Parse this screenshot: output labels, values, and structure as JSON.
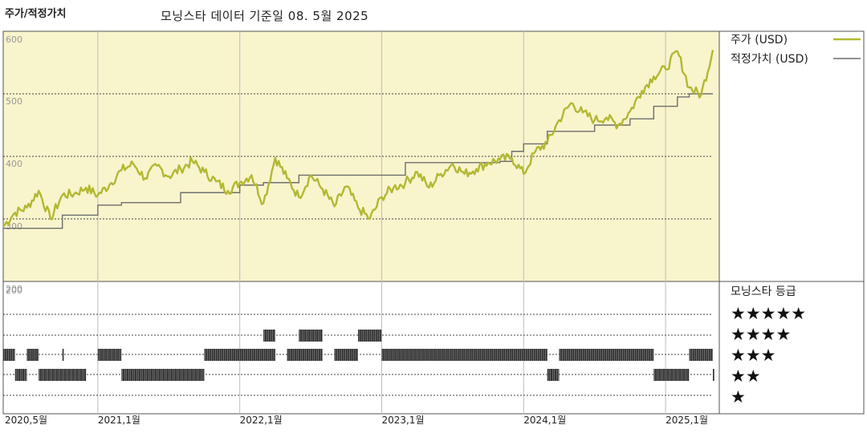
{
  "header": {
    "left_title": "주가/적정가치",
    "center_title": "모닝스타 데이터 기준일 08. 5월 2025"
  },
  "legend": {
    "price_label": "주가 (USD)",
    "fair_label": "적정가치 (USD)",
    "rating_title": "모닝스타 등급",
    "stars": [
      "★★★★★",
      "★★★★",
      "★★★",
      "★★",
      "★"
    ]
  },
  "colors": {
    "price": "#b2b832",
    "fair": "#6e6e6e",
    "plot_bg": "#f8f4cc",
    "rating_bar": "#2e2e2e"
  },
  "chart_data": {
    "type": "line",
    "ylim": [
      200,
      600
    ],
    "yticks": [
      200,
      300,
      400,
      500,
      600
    ],
    "ytick_labels": [
      "200",
      "300",
      "400",
      "500",
      "600"
    ],
    "x_labels": [
      {
        "label": "2020,5월",
        "date": "2020-05"
      },
      {
        "label": "2021,1월",
        "date": "2021-01"
      },
      {
        "label": "2022,1월",
        "date": "2022-01"
      },
      {
        "label": "2023,1월",
        "date": "2023-01"
      },
      {
        "label": "2024,1월",
        "date": "2024-01"
      },
      {
        "label": "2025,1월",
        "date": "2025-01"
      }
    ],
    "xrange": [
      "2020-05",
      "2025-05"
    ],
    "series": [
      {
        "name": "주가 (USD)",
        "values": [
          [
            "2020-05",
            288
          ],
          [
            "2020-06",
            310
          ],
          [
            "2020-07",
            318
          ],
          [
            "2020-08",
            345
          ],
          [
            "2020-09",
            300
          ],
          [
            "2020-10",
            338
          ],
          [
            "2020-11",
            340
          ],
          [
            "2020-12",
            350
          ],
          [
            "2021-01",
            338
          ],
          [
            "2021-02",
            355
          ],
          [
            "2021-03",
            378
          ],
          [
            "2021-04",
            388
          ],
          [
            "2021-05",
            365
          ],
          [
            "2021-06",
            385
          ],
          [
            "2021-07",
            368
          ],
          [
            "2021-08",
            380
          ],
          [
            "2021-09",
            392
          ],
          [
            "2021-10",
            375
          ],
          [
            "2021-11",
            360
          ],
          [
            "2021-12",
            345
          ],
          [
            "2022-01",
            358
          ],
          [
            "2022-02",
            370
          ],
          [
            "2022-03",
            325
          ],
          [
            "2022-04",
            398
          ],
          [
            "2022-05",
            365
          ],
          [
            "2022-06",
            335
          ],
          [
            "2022-07",
            370
          ],
          [
            "2022-08",
            348
          ],
          [
            "2022-09",
            320
          ],
          [
            "2022-10",
            352
          ],
          [
            "2022-11",
            318
          ],
          [
            "2022-12",
            300
          ],
          [
            "2023-01",
            335
          ],
          [
            "2023-02",
            350
          ],
          [
            "2023-03",
            358
          ],
          [
            "2023-04",
            375
          ],
          [
            "2023-05",
            350
          ],
          [
            "2023-06",
            372
          ],
          [
            "2023-07",
            388
          ],
          [
            "2023-08",
            372
          ],
          [
            "2023-09",
            380
          ],
          [
            "2023-10",
            390
          ],
          [
            "2023-11",
            395
          ],
          [
            "2023-12",
            398
          ],
          [
            "2024-01",
            372
          ],
          [
            "2024-02",
            408
          ],
          [
            "2024-03",
            422
          ],
          [
            "2024-04",
            458
          ],
          [
            "2024-05",
            485
          ],
          [
            "2024-06",
            470
          ],
          [
            "2024-07",
            458
          ],
          [
            "2024-08",
            462
          ],
          [
            "2024-09",
            450
          ],
          [
            "2024-10",
            472
          ],
          [
            "2024-11",
            505
          ],
          [
            "2024-12",
            528
          ],
          [
            "2025-01",
            540
          ],
          [
            "2025-02",
            568
          ],
          [
            "2025-03",
            510
          ],
          [
            "2025-04",
            498
          ],
          [
            "2025-05",
            570
          ]
        ]
      },
      {
        "name": "적정가치 (USD)",
        "step": [
          [
            "2020-05",
            285
          ],
          [
            "2020-10",
            306
          ],
          [
            "2021-01",
            322
          ],
          [
            "2021-03",
            326
          ],
          [
            "2021-08",
            342
          ],
          [
            "2022-01",
            354
          ],
          [
            "2022-03",
            358
          ],
          [
            "2022-06",
            370
          ],
          [
            "2023-03",
            390
          ],
          [
            "2023-11",
            392
          ],
          [
            "2023-12",
            408
          ],
          [
            "2024-01",
            420
          ],
          [
            "2024-03",
            440
          ],
          [
            "2024-07",
            450
          ],
          [
            "2024-10",
            460
          ],
          [
            "2024-12",
            480
          ],
          [
            "2025-02",
            495
          ],
          [
            "2025-03",
            500
          ]
        ]
      }
    ],
    "ratings": [
      {
        "stars": 3,
        "segments": [
          [
            "2020-05",
            "2020-06"
          ],
          [
            "2020-07",
            "2020-08"
          ],
          [
            "2020-10",
            "2020-10"
          ],
          [
            "2021-01",
            "2021-03"
          ],
          [
            "2021-10",
            "2022-04"
          ],
          [
            "2022-05",
            "2022-08"
          ],
          [
            "2022-09",
            "2022-11"
          ],
          [
            "2023-01",
            "2024-03"
          ],
          [
            "2024-04",
            "2024-12"
          ],
          [
            "2025-03",
            "2025-05"
          ]
        ]
      },
      {
        "stars": 2,
        "segments": [
          [
            "2020-06",
            "2020-07"
          ],
          [
            "2020-08",
            "2020-12"
          ],
          [
            "2021-03",
            "2021-10"
          ],
          [
            "2024-03",
            "2024-04"
          ],
          [
            "2024-12",
            "2025-03"
          ],
          [
            "2025-05",
            "2025-05"
          ]
        ]
      },
      {
        "stars": 4,
        "segments": [
          [
            "2022-03",
            "2022-04"
          ],
          [
            "2022-06",
            "2022-08"
          ],
          [
            "2022-11",
            "2023-01"
          ]
        ]
      }
    ]
  }
}
